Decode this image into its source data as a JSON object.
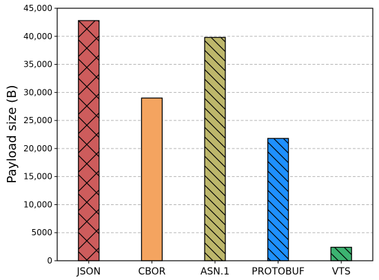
{
  "chart_data": {
    "type": "bar",
    "title": "",
    "xlabel": "",
    "ylabel": "Payload size (B)",
    "ylim": [
      0,
      45000
    ],
    "yticks": [
      0,
      5000,
      10000,
      15000,
      20000,
      25000,
      30000,
      35000,
      40000,
      45000
    ],
    "ytick_labels": [
      "0",
      "5000",
      "10,000",
      "15,000",
      "20,000",
      "25,000",
      "30,000",
      "35,000",
      "40,000",
      "45,000"
    ],
    "grid": "horizontal dashed",
    "categories": [
      "JSON",
      "CBOR",
      "ASN.1",
      "PROTOBUF",
      "VTS"
    ],
    "values": [
      42800,
      29000,
      39800,
      21800,
      2400
    ],
    "bar_colors": [
      "#cd5c5c",
      "#f4a460",
      "#bdb76b",
      "#1e90ff",
      "#3cb371"
    ],
    "bar_hatches": [
      "crosshatch",
      "none",
      "diagonal",
      "diagonal",
      "diagonal"
    ]
  }
}
